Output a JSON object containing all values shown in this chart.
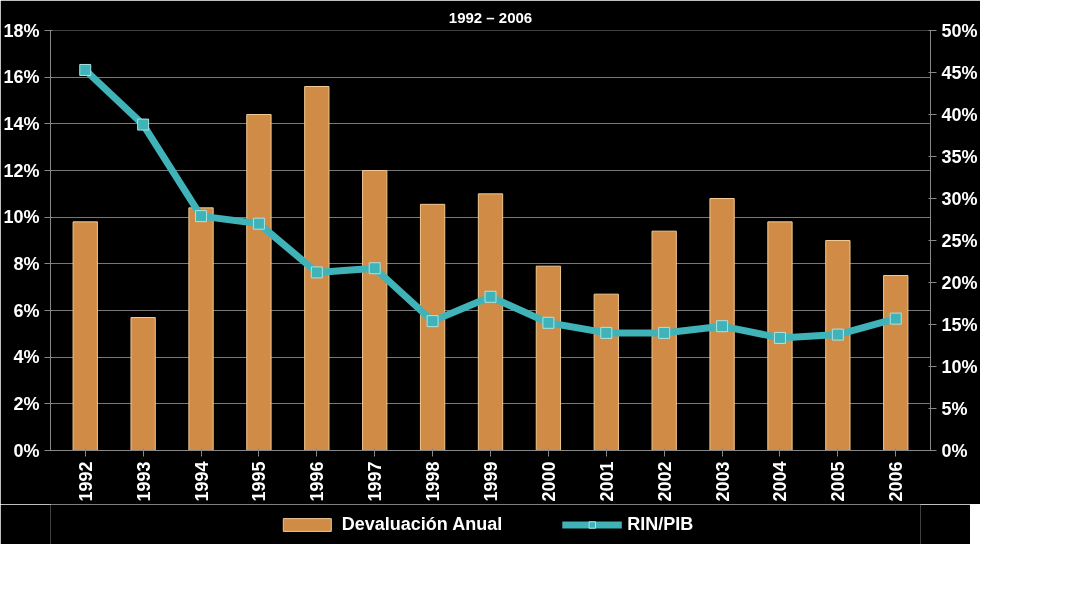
{
  "chart_data": {
    "type": "bar",
    "title": "1992 – 2006",
    "categories": [
      "1992",
      "1993",
      "1994",
      "1995",
      "1996",
      "1997",
      "1998",
      "1999",
      "2000",
      "2001",
      "2002",
      "2003",
      "2004",
      "2005",
      "2006"
    ],
    "series": [
      {
        "name": "Devaluación Anual",
        "color": "#d08c46",
        "values": [
          9.8,
          5.7,
          10.4,
          14.4,
          15.6,
          12.0,
          10.55,
          11.0,
          7.9,
          6.7,
          9.4,
          10.8,
          9.8,
          9.0,
          7.5
        ]
      },
      {
        "name": "RIN/PIB",
        "type": "line",
        "axis": "y2",
        "color": "#3fb3b8",
        "marker": "square",
        "values": [
          45.3,
          38.8,
          27.9,
          27.0,
          21.2,
          21.7,
          15.4,
          18.3,
          15.2,
          14.0,
          14.0,
          14.8,
          13.4,
          13.8,
          15.7
        ]
      }
    ],
    "ylim": [
      0,
      18
    ],
    "yticks": [
      {
        "value": 0,
        "label": "0%"
      },
      {
        "value": 2,
        "label": "2%"
      },
      {
        "value": 4,
        "label": "4%"
      },
      {
        "value": 6,
        "label": "6%"
      },
      {
        "value": 8,
        "label": "8%"
      },
      {
        "value": 10,
        "label": "10%"
      },
      {
        "value": 12,
        "label": "12%"
      },
      {
        "value": 14,
        "label": "14%"
      },
      {
        "value": 16,
        "label": "16%"
      },
      {
        "value": 18,
        "label": "18%"
      }
    ],
    "y2lim": [
      0,
      50
    ],
    "y2ticks": [
      {
        "value": 0,
        "label": "0%"
      },
      {
        "value": 5,
        "label": "5%"
      },
      {
        "value": 10,
        "label": "10%"
      },
      {
        "value": 15,
        "label": "15%"
      },
      {
        "value": 20,
        "label": "20%"
      },
      {
        "value": 25,
        "label": "25%"
      },
      {
        "value": 30,
        "label": "30%"
      },
      {
        "value": 35,
        "label": "35%"
      },
      {
        "value": 40,
        "label": "40%"
      },
      {
        "value": 45,
        "label": "45%"
      },
      {
        "value": 50,
        "label": "50%"
      }
    ],
    "grid": "y",
    "legend": "bottom"
  }
}
